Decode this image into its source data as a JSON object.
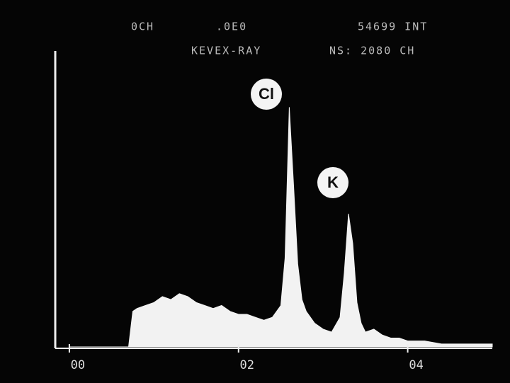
{
  "chart_data": {
    "type": "area",
    "header": [
      "0CH",
      ".0E0",
      "54699 INT",
      "KEVEX-RAY",
      "NS: 2080 CH"
    ],
    "annotations": [
      "Cl",
      "K"
    ],
    "x": [
      0.0,
      0.1,
      0.2,
      0.3,
      0.4,
      0.5,
      0.6,
      0.7,
      0.75,
      0.8,
      0.9,
      1.0,
      1.1,
      1.2,
      1.3,
      1.4,
      1.5,
      1.6,
      1.7,
      1.8,
      1.9,
      2.0,
      2.1,
      2.2,
      2.3,
      2.4,
      2.5,
      2.55,
      2.6,
      2.65,
      2.7,
      2.75,
      2.8,
      2.9,
      3.0,
      3.1,
      3.2,
      3.25,
      3.3,
      3.35,
      3.4,
      3.45,
      3.5,
      3.6,
      3.7,
      3.8,
      3.9,
      4.0,
      4.2,
      4.4,
      4.6,
      4.8,
      5.0
    ],
    "values": [
      0,
      0,
      0,
      0,
      0,
      0,
      0,
      0,
      12,
      13,
      14,
      15,
      17,
      16,
      18,
      17,
      15,
      14,
      13,
      14,
      12,
      11,
      11,
      10,
      9,
      10,
      14,
      30,
      81,
      55,
      28,
      16,
      12,
      8,
      6,
      5,
      10,
      25,
      45,
      35,
      15,
      8,
      5,
      6,
      4,
      3,
      3,
      2,
      2,
      1,
      1,
      1,
      1
    ],
    "color": "#f2f2f2",
    "xlim": [
      -0.15,
      5.0
    ],
    "ylim": [
      0,
      100
    ],
    "xticks": [
      {
        "value": 0,
        "label": "00"
      },
      {
        "value": 2,
        "label": "02"
      },
      {
        "value": 4,
        "label": "04"
      }
    ]
  }
}
